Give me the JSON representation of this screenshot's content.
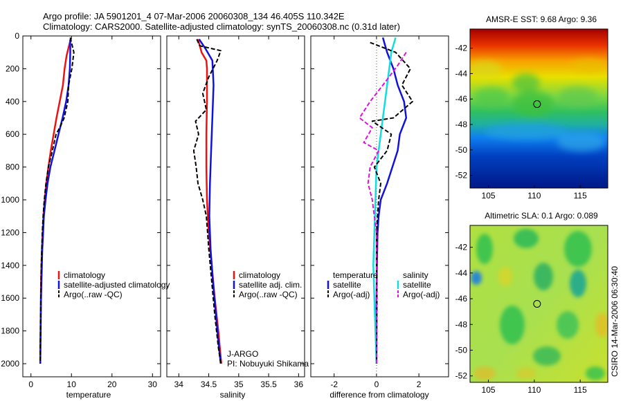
{
  "title_line1": "Argo profile: JA 5901201_4 07-Mar-2006 20060308_134 46.405S 110.342E",
  "title_line2": "Climatology: CARS2000. Satellite-adjusted climatology: synTS_20060308.nc (0.31d later)",
  "side_label": "CSIRO 14-Mar-2006 06:30:40",
  "colors": {
    "climatology": "#ee1111",
    "satellite": "#1111dd",
    "argo": "#000000",
    "sat_salinity": "#11dddd",
    "argo_adj_salinity": "#dd11dd",
    "float_marker": "#000000"
  },
  "chart_data": [
    {
      "type": "line",
      "xlabel": "temperature",
      "xlim": [
        -2,
        32
      ],
      "ylim": [
        2080,
        0
      ],
      "y_reversed": true,
      "x_ticks": [
        "0",
        "10",
        "20",
        "30"
      ],
      "y_ticks": [
        "0",
        "200",
        "400",
        "600",
        "800",
        "1000",
        "1200",
        "1400",
        "1600",
        "1800",
        "2000"
      ],
      "legend": [
        "climatology",
        "satellite-adjusted climatology",
        "Argo(..raw -QC)"
      ],
      "series": [
        {
          "name": "climatology",
          "style": "solid",
          "color": "#ee1111",
          "points": [
            [
              9.8,
              20
            ],
            [
              9.4,
              60
            ],
            [
              8.8,
              120
            ],
            [
              8.3,
              200
            ],
            [
              7.9,
              300
            ],
            [
              7.1,
              400
            ],
            [
              6.3,
              500
            ],
            [
              5.6,
              600
            ],
            [
              4.9,
              700
            ],
            [
              4.3,
              800
            ],
            [
              3.8,
              900
            ],
            [
              3.4,
              1000
            ],
            [
              3.1,
              1100
            ],
            [
              2.9,
              1200
            ],
            [
              2.7,
              1300
            ],
            [
              2.6,
              1400
            ],
            [
              2.5,
              1500
            ],
            [
              2.45,
              1600
            ],
            [
              2.4,
              1700
            ],
            [
              2.35,
              1800
            ],
            [
              2.3,
              1900
            ],
            [
              2.3,
              2000
            ]
          ]
        },
        {
          "name": "satellite-adjusted climatology",
          "style": "solid",
          "color": "#1111dd",
          "points": [
            [
              9.7,
              20
            ],
            [
              9.7,
              100
            ],
            [
              9.6,
              200
            ],
            [
              9.3,
              300
            ],
            [
              8.7,
              400
            ],
            [
              7.8,
              500
            ],
            [
              6.8,
              600
            ],
            [
              5.8,
              700
            ],
            [
              4.8,
              800
            ],
            [
              4.1,
              900
            ],
            [
              3.6,
              1000
            ],
            [
              3.2,
              1100
            ],
            [
              3.0,
              1200
            ],
            [
              2.8,
              1300
            ],
            [
              2.7,
              1400
            ],
            [
              2.6,
              1500
            ],
            [
              2.5,
              1600
            ],
            [
              2.45,
              1700
            ],
            [
              2.4,
              1800
            ],
            [
              2.35,
              1900
            ],
            [
              2.3,
              2000
            ]
          ]
        },
        {
          "name": "Argo(..raw -QC)",
          "style": "dashed",
          "color": "#000000",
          "points": [
            [
              9.7,
              10
            ],
            [
              10.6,
              100
            ],
            [
              10.1,
              200
            ],
            [
              9.3,
              300
            ],
            [
              9.1,
              400
            ],
            [
              8.2,
              500
            ],
            [
              7.3,
              550
            ],
            [
              6.2,
              600
            ],
            [
              5.3,
              700
            ],
            [
              4.3,
              800
            ],
            [
              3.7,
              900
            ],
            [
              3.3,
              1000
            ],
            [
              3.0,
              1100
            ],
            [
              2.8,
              1200
            ],
            [
              2.7,
              1300
            ],
            [
              2.55,
              1400
            ],
            [
              2.5,
              1500
            ],
            [
              2.45,
              1600
            ],
            [
              2.4,
              1700
            ],
            [
              2.35,
              1800
            ],
            [
              2.3,
              1900
            ],
            [
              2.3,
              2000
            ]
          ]
        }
      ]
    },
    {
      "type": "line",
      "xlabel": "salinity",
      "xlim": [
        33.8,
        36.1
      ],
      "ylim": [
        2080,
        0
      ],
      "y_reversed": true,
      "x_ticks": [
        "34",
        "34.5",
        "35",
        "35.5",
        "36"
      ],
      "legend": [
        "climatology",
        "satellite adj. clim.",
        "Argo(..raw -QC)"
      ],
      "annotation": [
        "J-ARGO",
        "PI: Nobuyuki Shikama"
      ],
      "series": [
        {
          "name": "climatology",
          "style": "solid",
          "color": "#ee1111",
          "points": [
            [
              34.32,
              20
            ],
            [
              34.38,
              100
            ],
            [
              34.46,
              150
            ],
            [
              34.47,
              200
            ],
            [
              34.47,
              400
            ],
            [
              34.46,
              600
            ],
            [
              34.46,
              800
            ],
            [
              34.47,
              1000
            ],
            [
              34.5,
              1200
            ],
            [
              34.55,
              1400
            ],
            [
              34.6,
              1600
            ],
            [
              34.66,
              1800
            ],
            [
              34.71,
              2000
            ]
          ]
        },
        {
          "name": "satellite adj. clim.",
          "style": "solid",
          "color": "#1111dd",
          "points": [
            [
              34.34,
              20
            ],
            [
              34.45,
              80
            ],
            [
              34.56,
              150
            ],
            [
              34.58,
              300
            ],
            [
              34.56,
              500
            ],
            [
              34.54,
              700
            ],
            [
              34.52,
              900
            ],
            [
              34.51,
              1100
            ],
            [
              34.53,
              1300
            ],
            [
              34.57,
              1500
            ],
            [
              34.62,
              1700
            ],
            [
              34.67,
              1900
            ],
            [
              34.7,
              2000
            ]
          ]
        },
        {
          "name": "Argo(..raw -QC)",
          "style": "dashed",
          "color": "#000000",
          "points": [
            [
              34.3,
              20
            ],
            [
              34.35,
              60
            ],
            [
              34.7,
              90
            ],
            [
              34.64,
              150
            ],
            [
              34.5,
              250
            ],
            [
              34.4,
              350
            ],
            [
              34.46,
              450
            ],
            [
              34.28,
              520
            ],
            [
              34.33,
              600
            ],
            [
              34.25,
              700
            ],
            [
              34.29,
              800
            ],
            [
              34.32,
              900
            ],
            [
              34.4,
              1000
            ],
            [
              34.46,
              1100
            ],
            [
              34.5,
              1300
            ],
            [
              34.55,
              1500
            ],
            [
              34.6,
              1700
            ],
            [
              34.66,
              1900
            ],
            [
              34.7,
              2000
            ]
          ]
        }
      ]
    },
    {
      "type": "line",
      "xlabel": "difference from climatology",
      "xlim": [
        -3.1,
        3.4
      ],
      "ylim": [
        2080,
        0
      ],
      "y_reversed": true,
      "x_ticks": [
        "-2",
        "0",
        "2"
      ],
      "legend_columns": [
        {
          "header": "temperature",
          "entries": [
            "satellite",
            "Argo(-adj)"
          ]
        },
        {
          "header": "salinity",
          "entries": [
            "satellite",
            "Argo(-adj)"
          ]
        }
      ],
      "series": [
        {
          "name": "temperature satellite",
          "style": "solid",
          "color": "#1111dd",
          "points": [
            [
              0.3,
              10
            ],
            [
              0.5,
              100
            ],
            [
              0.8,
              200
            ],
            [
              1.0,
              300
            ],
            [
              1.3,
              400
            ],
            [
              1.4,
              500
            ],
            [
              1.1,
              600
            ],
            [
              1.0,
              700
            ],
            [
              0.5,
              900
            ],
            [
              0.2,
              1000
            ],
            [
              0.1,
              1100
            ],
            [
              0.05,
              1200
            ],
            [
              0.02,
              1400
            ],
            [
              0,
              1600
            ],
            [
              0,
              2000
            ]
          ]
        },
        {
          "name": "salinity satellite",
          "style": "solid",
          "color": "#11dddd",
          "points": [
            [
              0.9,
              10
            ],
            [
              0.7,
              100
            ],
            [
              0.6,
              200
            ],
            [
              0.5,
              300
            ],
            [
              0.4,
              400
            ],
            [
              0.3,
              500
            ],
            [
              0.2,
              600
            ],
            [
              0.1,
              700
            ],
            [
              0,
              800
            ],
            [
              -0.05,
              1000
            ],
            [
              -0.1,
              1200
            ],
            [
              -0.15,
              1400
            ],
            [
              -0.1,
              1600
            ],
            [
              0,
              2000
            ]
          ]
        },
        {
          "name": "temperature Argo(-adj)",
          "style": "dashed",
          "color": "#000000",
          "points": [
            [
              -0.3,
              40
            ],
            [
              0.9,
              100
            ],
            [
              1.6,
              200
            ],
            [
              1.2,
              300
            ],
            [
              1.7,
              400
            ],
            [
              0.8,
              500
            ],
            [
              -0.2,
              520
            ],
            [
              0.7,
              600
            ],
            [
              0.5,
              700
            ],
            [
              -0.1,
              800
            ],
            [
              0.2,
              900
            ],
            [
              0.1,
              1000
            ],
            [
              0.05,
              1100
            ],
            [
              0,
              1200
            ],
            [
              0,
              1400
            ],
            [
              0.02,
              1600
            ],
            [
              0,
              2000
            ]
          ]
        },
        {
          "name": "salinity Argo(-adj)",
          "style": "dashed",
          "color": "#dd11dd",
          "points": [
            [
              1.4,
              100
            ],
            [
              1.0,
              180
            ],
            [
              0.3,
              300
            ],
            [
              -0.3,
              400
            ],
            [
              -0.8,
              500
            ],
            [
              -0.2,
              560
            ],
            [
              -0.6,
              650
            ],
            [
              0.1,
              700
            ],
            [
              -0.3,
              800
            ],
            [
              -0.4,
              900
            ],
            [
              -0.2,
              1000
            ],
            [
              -0.1,
              1100
            ],
            [
              0,
              1200
            ],
            [
              0,
              1400
            ],
            [
              0,
              2000
            ]
          ]
        }
      ]
    },
    {
      "type": "heatmap",
      "title": "AMSR-E SST: 9.68 Argo: 9.36",
      "xlim": [
        103,
        118
      ],
      "ylim": [
        -53,
        -40.5
      ],
      "x_ticks": [
        "105",
        "110",
        "115"
      ],
      "y_ticks": [
        "-42",
        "-44",
        "-46",
        "-48",
        "-50",
        "-52"
      ],
      "marker": {
        "lon": 110.3,
        "lat": -46.4
      }
    },
    {
      "type": "heatmap",
      "title": "Altimetric SLA: 0.1 Argo: 0.089",
      "xlim": [
        103,
        118
      ],
      "ylim": [
        -52.5,
        -40.3
      ],
      "x_ticks": [
        "105",
        "110",
        "115"
      ],
      "y_ticks": [
        "-42",
        "-44",
        "-46",
        "-48",
        "-50",
        "-52"
      ],
      "marker": {
        "lon": 110.3,
        "lat": -46.4
      }
    }
  ]
}
